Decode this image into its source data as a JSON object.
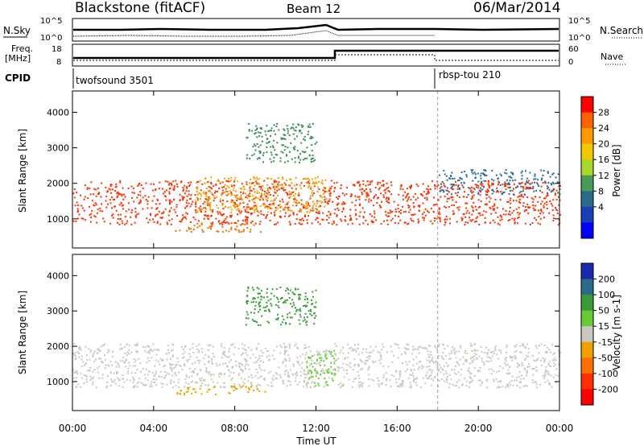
{
  "header": {
    "station": "Blackstone (fitACF)",
    "beam": "Beam 12",
    "date": "06/Mar/2014"
  },
  "noise_panel": {
    "left_label": "N.Sky",
    "left_ticks": [
      "10^5",
      "10^0"
    ],
    "right_label": "N.Search",
    "right_ticks": [
      "10^5",
      "10^0"
    ]
  },
  "freq_panel": {
    "left_label": "Freq.",
    "left_unit": "[MHz]",
    "left_ticks": [
      "18",
      "8"
    ],
    "right_label": "Nave",
    "right_ticks": [
      "60",
      "0"
    ],
    "freq_steps": [
      {
        "from": 0,
        "to": 13,
        "value": 10
      },
      {
        "from": 13,
        "to": 24,
        "value": 14
      }
    ],
    "nave_steps": [
      {
        "from": 0,
        "to": 13,
        "value": 10
      },
      {
        "from": 13,
        "to": 24,
        "value": 20
      }
    ]
  },
  "cpid": {
    "label": "CPID",
    "programs": [
      {
        "name": "twofsound 3501",
        "start_hour": 0
      },
      {
        "name": "rbsp-tou 210",
        "start_hour": 18
      }
    ]
  },
  "x_axis": {
    "title": "Time UT",
    "ticks": [
      "00:00",
      "04:00",
      "08:00",
      "12:00",
      "16:00",
      "20:00",
      "00:00"
    ],
    "tick_hours": [
      0,
      4,
      8,
      12,
      16,
      20,
      24
    ]
  },
  "chart_data": [
    {
      "type": "heatmap",
      "title": "Power",
      "ylabel": "Slant Range [km]",
      "yticks": [
        1000,
        2000,
        3000,
        4000
      ],
      "ylim": [
        180,
        4600
      ],
      "xlim": [
        0,
        24
      ],
      "colorbar": {
        "label": "Power [dB]",
        "ticks": [
          "28",
          "24",
          "20",
          "16",
          "12",
          "8",
          "4"
        ],
        "colors": [
          "#ff0000",
          "#ff6000",
          "#ff9a00",
          "#f0c800",
          "#a8d82a",
          "#4a9a5a",
          "#2a6a8a",
          "#1a40b8",
          "#0000ff"
        ]
      },
      "features": [
        {
          "name": "main backscatter band",
          "hours": [
            0,
            24
          ],
          "range_km": [
            850,
            2100
          ],
          "color": "#ff3000"
        },
        {
          "name": "evening arc",
          "hours": [
            6,
            12.5
          ],
          "range_km": [
            1200,
            2200
          ],
          "color": "#f0a000"
        },
        {
          "name": "E-region patch",
          "hours": [
            5,
            9.5
          ],
          "range_km": [
            650,
            900
          ],
          "color": "#f07000"
        },
        {
          "name": "upper patch",
          "hours": [
            8.5,
            12
          ],
          "range_km": [
            2600,
            3700
          ],
          "color": "#3a8a5a"
        },
        {
          "name": "rbsp layer",
          "hours": [
            18,
            24
          ],
          "range_km": [
            1700,
            2400
          ],
          "color": "#2a6a9a"
        }
      ]
    },
    {
      "type": "heatmap",
      "title": "Velocity",
      "ylabel": "Slant Range [km]",
      "yticks": [
        1000,
        2000,
        3000,
        4000
      ],
      "ylim": [
        180,
        4600
      ],
      "xlim": [
        0,
        24
      ],
      "colorbar": {
        "label": "Velocity [m s-1]",
        "ticks": [
          "200",
          "100",
          "50",
          "15",
          "-15",
          "-50",
          "-100",
          "-200"
        ],
        "colors": [
          "#1a2ab0",
          "#2a6a8a",
          "#3a9a3a",
          "#66cc33",
          "#c8c8c0",
          "#f0a000",
          "#ff7000",
          "#ff3000",
          "#ff0000"
        ]
      },
      "features": [
        {
          "name": "ground scatter band",
          "hours": [
            0,
            24
          ],
          "range_km": [
            850,
            2100
          ],
          "color": "#c8c8c0"
        },
        {
          "name": "E-region patch",
          "hours": [
            5,
            9.5
          ],
          "range_km": [
            650,
            900
          ],
          "color": "#f0a000"
        },
        {
          "name": "upper patch",
          "hours": [
            8.5,
            12
          ],
          "range_km": [
            2600,
            3700
          ],
          "color": "#3a9a3a"
        },
        {
          "name": "descending arc",
          "hours": [
            11.5,
            13
          ],
          "range_km": [
            900,
            1900
          ],
          "color": "#66cc33"
        }
      ]
    }
  ]
}
